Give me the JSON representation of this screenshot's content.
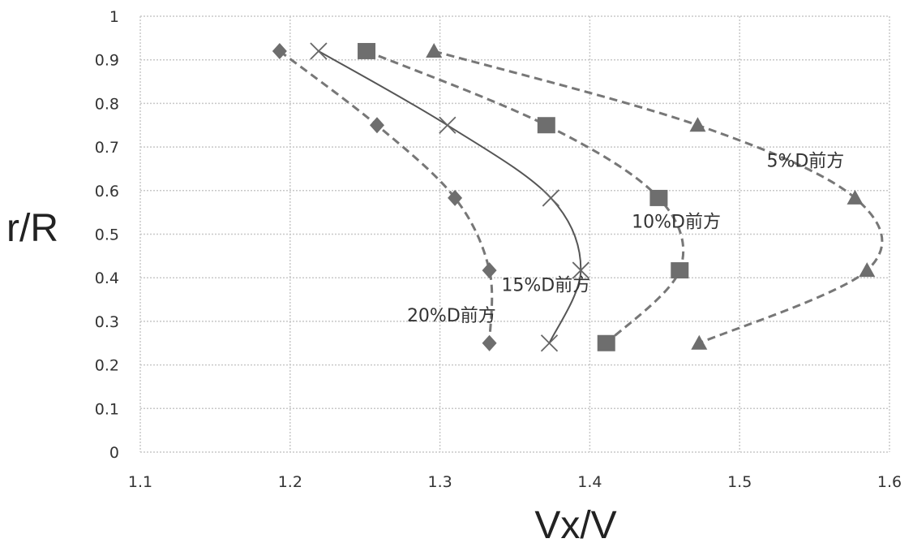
{
  "chart_data": {
    "type": "scatter",
    "xlabel": "Vx/V",
    "ylabel": "r/R",
    "xlim": [
      1.1,
      1.6
    ],
    "ylim": [
      0,
      1
    ],
    "x_ticks": [
      "1.1",
      "1.2",
      "1.3",
      "1.4",
      "1.5",
      "1.6"
    ],
    "y_ticks": [
      "0",
      "0.1",
      "0.2",
      "0.3",
      "0.4",
      "0.5",
      "0.6",
      "0.7",
      "0.8",
      "0.9",
      "1"
    ],
    "grid": true,
    "series": [
      {
        "name": "5%D前方",
        "marker": "triangle",
        "line": "dashed",
        "points": [
          [
            1.296,
            0.92
          ],
          [
            1.472,
            0.75
          ],
          [
            1.577,
            0.583
          ],
          [
            1.585,
            0.417
          ],
          [
            1.473,
            0.25
          ]
        ]
      },
      {
        "name": "10%D前方",
        "marker": "square",
        "line": "dashed",
        "points": [
          [
            1.251,
            0.92
          ],
          [
            1.371,
            0.75
          ],
          [
            1.446,
            0.583
          ],
          [
            1.46,
            0.417
          ],
          [
            1.411,
            0.25
          ]
        ]
      },
      {
        "name": "15%D前方",
        "marker": "x",
        "line": "solid",
        "points": [
          [
            1.219,
            0.92
          ],
          [
            1.305,
            0.75
          ],
          [
            1.374,
            0.583
          ],
          [
            1.394,
            0.417
          ],
          [
            1.373,
            0.25
          ]
        ]
      },
      {
        "name": "20%D前方",
        "marker": "diamond",
        "line": "dashed",
        "points": [
          [
            1.193,
            0.92
          ],
          [
            1.258,
            0.75
          ],
          [
            1.31,
            0.583
          ],
          [
            1.333,
            0.417
          ],
          [
            1.333,
            0.25
          ]
        ]
      }
    ]
  }
}
